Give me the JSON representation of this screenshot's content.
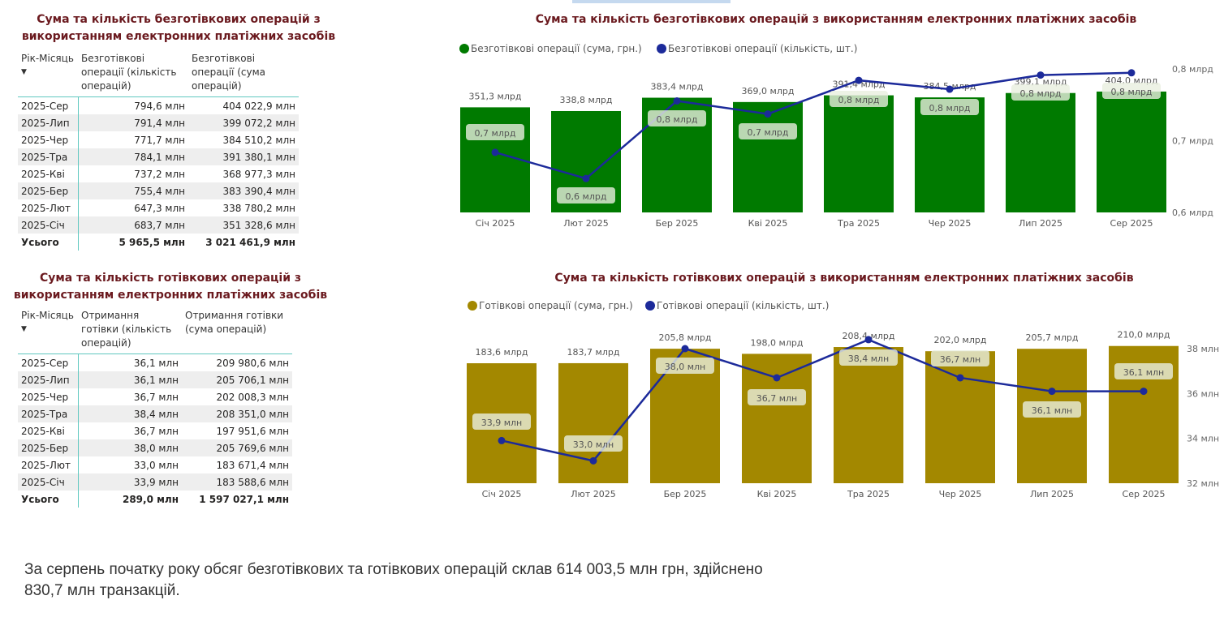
{
  "table1": {
    "title": "Сума та кількість безготівкових операцій з використанням електронних платіжних засобів",
    "headers": [
      "Рік-Місяць",
      "Безготівкові операції (кількість операцій)",
      "Безготівкові операції (сума операцій)"
    ],
    "rows": [
      [
        "2025-Сер",
        "794,6 млн",
        "404 022,9 млн"
      ],
      [
        "2025-Лип",
        "791,4 млн",
        "399 072,2 млн"
      ],
      [
        "2025-Чер",
        "771,7 млн",
        "384 510,2 млн"
      ],
      [
        "2025-Тра",
        "784,1 млн",
        "391 380,1 млн"
      ],
      [
        "2025-Кві",
        "737,2 млн",
        "368 977,3 млн"
      ],
      [
        "2025-Бер",
        "755,4 млн",
        "383 390,4 млн"
      ],
      [
        "2025-Лют",
        "647,3 млн",
        "338 780,2 млн"
      ],
      [
        "2025-Січ",
        "683,7 млн",
        "351 328,6 млн"
      ]
    ],
    "total": [
      "Усього",
      "5 965,5 млн",
      "3 021 461,9 млн"
    ]
  },
  "table2": {
    "title": "Сума та кількість готівкових операцій з використанням електронних платіжних засобів",
    "headers": [
      "Рік-Місяць",
      "Отримання готівки (кількість операцій)",
      "Отримання готівки (сума операцій)"
    ],
    "rows": [
      [
        "2025-Сер",
        "36,1 млн",
        "209 980,6 млн"
      ],
      [
        "2025-Лип",
        "36,1 млн",
        "205 706,1 млн"
      ],
      [
        "2025-Чер",
        "36,7 млн",
        "202 008,3 млн"
      ],
      [
        "2025-Тра",
        "38,4 млн",
        "208 351,0 млн"
      ],
      [
        "2025-Кві",
        "36,7 млн",
        "197 951,6 млн"
      ],
      [
        "2025-Бер",
        "38,0 млн",
        "205 769,6 млн"
      ],
      [
        "2025-Лют",
        "33,0 млн",
        "183 671,4 млн"
      ],
      [
        "2025-Січ",
        "33,9 млн",
        "183 588,6 млн"
      ]
    ],
    "total": [
      "Усього",
      "289,0 млн",
      "1 597 027,1 млн"
    ]
  },
  "chart_data": [
    {
      "type": "bar+line",
      "title": "Сума та кількість безготівкових  операцій з використанням електронних платіжних засобів",
      "categories": [
        "Січ 2025",
        "Лют 2025",
        "Бер 2025",
        "Кві 2025",
        "Тра 2025",
        "Чер 2025",
        "Лип 2025",
        "Сер 2025"
      ],
      "series": [
        {
          "name": "Безготівкові операції (сума, грн.)",
          "type": "bar",
          "color": "#007a00",
          "values": [
            351.3,
            338.8,
            383.4,
            369.0,
            391.4,
            384.5,
            399.1,
            404.0
          ],
          "labels": [
            "351,3 млрд",
            "338,8 млрд",
            "383,4 млрд",
            "369,0 млрд",
            "391,4 млрд",
            "384,5 млрд",
            "399,1 млрд",
            "404,0 млрд"
          ]
        },
        {
          "name": "Безготівкові операції (кількість, шт.)",
          "type": "line",
          "color": "#1c2a9a",
          "values": [
            0.6837,
            0.6473,
            0.7554,
            0.7372,
            0.7841,
            0.7717,
            0.7914,
            0.7946
          ],
          "labels": [
            "0,7 млрд",
            "0,6 млрд",
            "0,8 млрд",
            "0,7 млрд",
            "0,8 млрд",
            "0,8 млрд",
            "0,8 млрд",
            "0,8 млрд"
          ]
        }
      ],
      "y2_ticks": [
        "0,6 млрд",
        "0,7 млрд",
        "0,8 млрд"
      ],
      "y2lim": [
        0.6,
        0.8
      ],
      "legend": "top-left"
    },
    {
      "type": "bar+line",
      "title": "Сума та кількість готівкових  операцій з використанням електронних платіжних засобів",
      "categories": [
        "Січ 2025",
        "Лют 2025",
        "Бер 2025",
        "Кві 2025",
        "Тра 2025",
        "Чер 2025",
        "Лип 2025",
        "Сер 2025"
      ],
      "series": [
        {
          "name": "Готівкові операції (сума, грн.)",
          "type": "bar",
          "color": "#a38800",
          "values": [
            183.6,
            183.7,
            205.8,
            198.0,
            208.4,
            202.0,
            205.7,
            210.0
          ],
          "labels": [
            "183,6 млрд",
            "183,7 млрд",
            "205,8 млрд",
            "198,0 млрд",
            "208,4 млрд",
            "202,0 млрд",
            "205,7 млрд",
            "210,0 млрд"
          ]
        },
        {
          "name": "Готівкові операції (кількість, шт.)",
          "type": "line",
          "color": "#1c2a9a",
          "values": [
            33.9,
            33.0,
            38.0,
            36.7,
            38.4,
            36.7,
            36.1,
            36.1
          ],
          "labels": [
            "33,9 млн",
            "33,0 млн",
            "38,0 млн",
            "36,7 млн",
            "38,4 млн",
            "36,7 млн",
            "36,1 млн",
            "36,1 млн"
          ]
        }
      ],
      "y2_ticks": [
        "32 млн",
        "34 млн",
        "36 млн",
        "38 млн"
      ],
      "y2lim": [
        32,
        38
      ],
      "legend": "top-left"
    }
  ],
  "note": "За серпень початку року обсяг безготівкових та готівкових операцій склав 614 003,5 млн грн, здійснено 830,7 млн транзакцій."
}
